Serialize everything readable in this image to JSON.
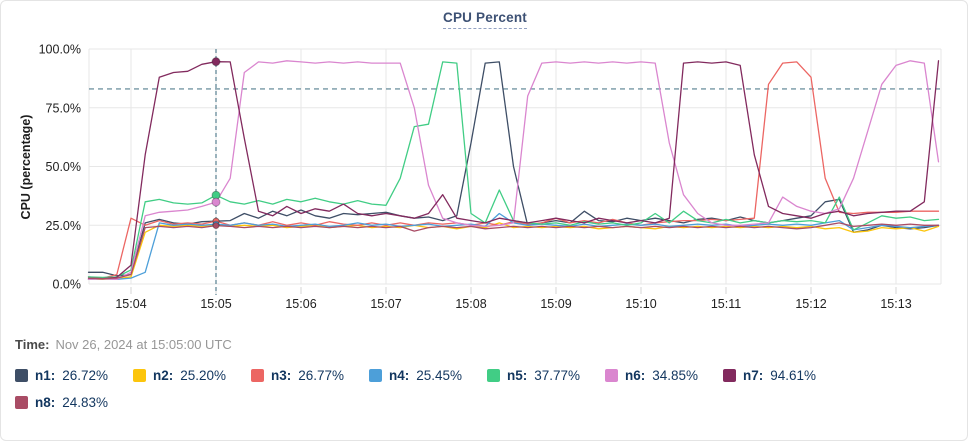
{
  "title": "CPU Percent",
  "footer": {
    "time_label": "Time:",
    "time_value": "Nov 26, 2024 at 15:05:00 UTC"
  },
  "colors": {
    "grid": "#e7e7e7",
    "tick_mark": "#d6d6d6",
    "axis_text": "#212121",
    "threshold_line": "#567f8f",
    "crosshair_line": "#567f8f",
    "title_text": "#3d5174",
    "legend_text": "#12365f"
  },
  "chart_data": {
    "type": "line",
    "title": "CPU Percent",
    "xlabel": "",
    "ylabel": "CPU (percentage)",
    "ylim": [
      0,
      100
    ],
    "grid": true,
    "legend_position": "bottom",
    "threshold_value": 83,
    "crosshair_minute": 5,
    "crosshair_time": "15:05:00",
    "x_start_min": 3.5,
    "x_step_min": 0.1666667,
    "y_ticks": [
      {
        "value": 100,
        "label": "100.0%"
      },
      {
        "value": 75,
        "label": "75.0%"
      },
      {
        "value": 50,
        "label": "50.0%"
      },
      {
        "value": 25,
        "label": "25.0%"
      },
      {
        "value": 0,
        "label": "0.0%"
      }
    ],
    "x_ticks": [
      {
        "minute": 4,
        "label": "15:04"
      },
      {
        "minute": 5,
        "label": "15:05"
      },
      {
        "minute": 6,
        "label": "15:06"
      },
      {
        "minute": 7,
        "label": "15:07"
      },
      {
        "minute": 8,
        "label": "15:08"
      },
      {
        "minute": 9,
        "label": "15:09"
      },
      {
        "minute": 10,
        "label": "15:10"
      },
      {
        "minute": 11,
        "label": "15:11"
      },
      {
        "minute": 12,
        "label": "15:12"
      },
      {
        "minute": 13,
        "label": "15:13"
      }
    ],
    "series": [
      {
        "name": "n1",
        "legend_label": "n1:",
        "legend_value": "26.72%",
        "marker_value": 26.72,
        "color": "#3e4e66",
        "values": [
          5,
          5,
          3.5,
          4,
          26,
          27.5,
          26,
          25.5,
          26.5,
          26.72,
          27,
          30,
          28,
          31,
          29,
          31.5,
          29,
          28,
          30,
          29.5,
          30,
          30.5,
          29,
          28,
          28.5,
          27,
          29,
          60,
          94,
          94.5,
          50,
          25,
          26,
          27,
          26,
          31,
          27,
          26.5,
          28,
          27,
          28,
          27,
          26,
          27.5,
          28,
          27,
          28.5,
          27,
          26,
          27,
          28,
          29,
          35,
          36,
          22,
          23,
          25,
          24,
          23.5,
          24,
          25
        ]
      },
      {
        "name": "n2",
        "legend_label": "n2:",
        "legend_value": "25.20%",
        "marker_value": 25.2,
        "color": "#fcc50c",
        "values": [
          2,
          2,
          2.2,
          3,
          22,
          25,
          24.5,
          25,
          24.5,
          25.2,
          24.5,
          25,
          24.5,
          25,
          24,
          24.5,
          25,
          24,
          24.5,
          25,
          24,
          24.5,
          24,
          25,
          24,
          24.5,
          23.5,
          24.5,
          24,
          26,
          24,
          24.5,
          24,
          24.5,
          24,
          24.5,
          23.5,
          24,
          24.5,
          24,
          23.5,
          24.5,
          24,
          24.5,
          24,
          24.5,
          24,
          24.5,
          24,
          24.5,
          24,
          24.5,
          23.5,
          24,
          22,
          22.5,
          24,
          23.5,
          24,
          22.5,
          24.5
        ]
      },
      {
        "name": "n3",
        "legend_label": "n3:",
        "legend_value": "26.77%",
        "marker_value": 26.77,
        "color": "#ec6663",
        "values": [
          3,
          2.5,
          4,
          28,
          25,
          27,
          25.5,
          26,
          25.5,
          26.77,
          25,
          26,
          25,
          26.5,
          25,
          26,
          25,
          26.5,
          25.5,
          25,
          26,
          25,
          26,
          25,
          26,
          25.5,
          26,
          25,
          26,
          25,
          26.5,
          25.5,
          26,
          28,
          26,
          27,
          26,
          27.5,
          26,
          25,
          26,
          26.5,
          27,
          27,
          27.5,
          27,
          27.5,
          28,
          85,
          94,
          94.5,
          88,
          45,
          30.5,
          30,
          30.5,
          30.5,
          30.5,
          31,
          31,
          31
        ]
      },
      {
        "name": "n4",
        "legend_label": "n4:",
        "legend_value": "25.45%",
        "marker_value": 25.45,
        "color": "#4d9fd9",
        "values": [
          2,
          2.2,
          2,
          2.5,
          5,
          26,
          25,
          25.5,
          25,
          25.45,
          25,
          26,
          25,
          25.5,
          24.5,
          25,
          25.5,
          24.5,
          25,
          26,
          25,
          25.5,
          24.5,
          25,
          25.5,
          24.5,
          25,
          25.5,
          24.5,
          30,
          26,
          25,
          25.5,
          25,
          24.5,
          25.5,
          24.5,
          25,
          25.5,
          25,
          25.5,
          24.5,
          25,
          25.5,
          25,
          25.5,
          24.5,
          25,
          25.5,
          25,
          25.5,
          25,
          26,
          27,
          23,
          24,
          25,
          24.5,
          24,
          24.5,
          25
        ]
      },
      {
        "name": "n5",
        "legend_label": "n5:",
        "legend_value": "37.77%",
        "marker_value": 37.77,
        "color": "#41cd85",
        "values": [
          3,
          2.8,
          3,
          6,
          35,
          36,
          34.5,
          34,
          34.5,
          37.77,
          35,
          34,
          35.5,
          34,
          36,
          35,
          36.5,
          35,
          34,
          35.5,
          34,
          33.5,
          45,
          67,
          68,
          94.5,
          94,
          30,
          26,
          40,
          27,
          26,
          25.5,
          26,
          25,
          26.5,
          25.5,
          26,
          25,
          26,
          30,
          26,
          31,
          27,
          26,
          27.5,
          26,
          27,
          26,
          27,
          26.5,
          27,
          26,
          37,
          23,
          26,
          29,
          28,
          28.5,
          27,
          27.5
        ]
      },
      {
        "name": "n6",
        "legend_label": "n6:",
        "legend_value": "34.85%",
        "marker_value": 34.85,
        "color": "#da86cf",
        "values": [
          2,
          2.2,
          2,
          5,
          29,
          30.5,
          31,
          31.5,
          33,
          34.85,
          45,
          90,
          94.5,
          94,
          95,
          94.5,
          94,
          94.5,
          94,
          94.5,
          94,
          94,
          94,
          75,
          42,
          28,
          26,
          25,
          24.5,
          25,
          26,
          80,
          94,
          94.5,
          94,
          94.5,
          94,
          94.5,
          94,
          94.5,
          94,
          60,
          38,
          30,
          26,
          25,
          25,
          25.5,
          26,
          37,
          33,
          31,
          30,
          32,
          45,
          65,
          85,
          93,
          95,
          94,
          52
        ]
      },
      {
        "name": "n7",
        "legend_label": "n7:",
        "legend_value": "94.61%",
        "marker_value": 94.61,
        "color": "#822a5e",
        "values": [
          2.5,
          2.3,
          2.8,
          8,
          55,
          88,
          90,
          90.5,
          93.5,
          94.61,
          94.5,
          62,
          31,
          29,
          33,
          30,
          32,
          31,
          34,
          30,
          29,
          30,
          29,
          28,
          30,
          38,
          28,
          27,
          26,
          28,
          27,
          26,
          27,
          28,
          27,
          26,
          28,
          27,
          26,
          27,
          26,
          28,
          94,
          94.5,
          94,
          94.5,
          93,
          55,
          33,
          30,
          29,
          28,
          30,
          31,
          29,
          30,
          30.5,
          31,
          31,
          35,
          95
        ]
      },
      {
        "name": "n8",
        "legend_label": "n8:",
        "legend_value": "24.83%",
        "marker_value": 24.83,
        "color": "#a94c65",
        "values": [
          2.5,
          2.3,
          2.5,
          4,
          24,
          24.5,
          24,
          24.5,
          24,
          24.83,
          24.5,
          24,
          24.5,
          24,
          24.5,
          24,
          24.5,
          24,
          24.5,
          24,
          24.5,
          24,
          24.5,
          22.5,
          24,
          24.5,
          24,
          24.5,
          23.5,
          24,
          24.5,
          24,
          24.5,
          24,
          24.5,
          24,
          24.5,
          24,
          24.5,
          24,
          24.5,
          24,
          24.5,
          24,
          24.5,
          24,
          24.5,
          24,
          24.5,
          24,
          23.5,
          24,
          25,
          26,
          24.5,
          25,
          25.5,
          25,
          25.5,
          25,
          25
        ]
      }
    ]
  }
}
